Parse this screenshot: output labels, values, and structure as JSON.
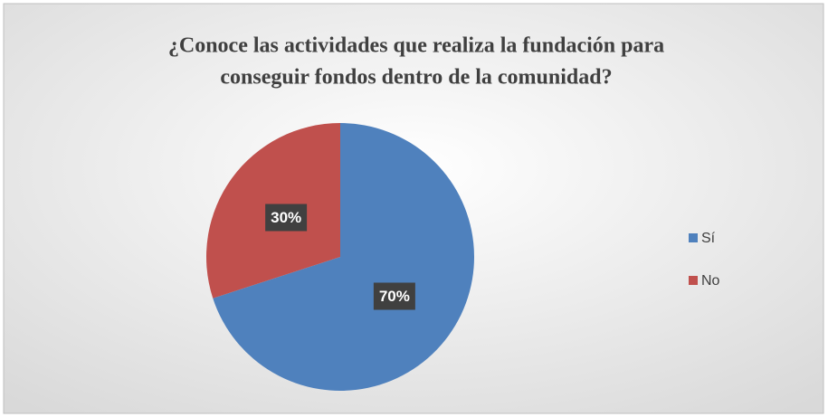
{
  "chart_data": {
    "type": "pie",
    "title": [
      "¿Conoce las actividades que realiza la fundación para",
      "conseguir fondos dentro de la comunidad?"
    ],
    "categories": [
      "Sí",
      "No"
    ],
    "values": [
      70,
      30
    ],
    "value_labels": [
      "70%",
      "30%"
    ],
    "colors": [
      "#4f81bd",
      "#c0504d"
    ],
    "legend": "right"
  }
}
